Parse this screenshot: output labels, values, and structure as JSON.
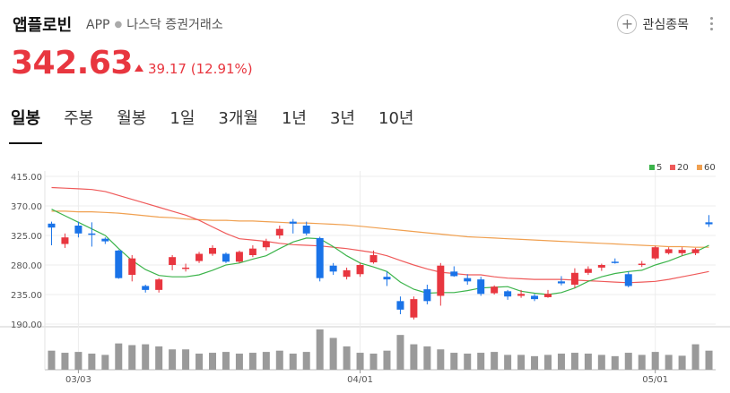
{
  "header": {
    "name": "앱플로빈",
    "ticker": "APP",
    "exchange": "나스닥 증권거래소",
    "watch_label": "관심종목"
  },
  "quote": {
    "price": "342.63",
    "change": "39.17",
    "change_pct": "(12.91%)"
  },
  "tabs": [
    "일봉",
    "주봉",
    "월봉",
    "1일",
    "3개월",
    "1년",
    "3년",
    "10년"
  ],
  "colors": {
    "up": "#e8363f",
    "down": "#1a73e8",
    "ma5": "#3cb44b",
    "ma20": "#ef5a5a",
    "ma60": "#f0a050"
  },
  "chart_data": {
    "type": "candlestick",
    "ylim": [
      190,
      415
    ],
    "yticks": [
      415,
      370,
      325,
      280,
      235,
      190
    ],
    "ytick_labels": [
      "415.00",
      "370.00",
      "325.00",
      "280.00",
      "235.00",
      "190.00"
    ],
    "xtick_labels": [
      "03/03",
      "04/01",
      "05/01"
    ],
    "xtick_index": [
      2,
      23,
      45
    ],
    "legend": [
      "5",
      "20",
      "60"
    ],
    "candles": [
      [
        343,
        337,
        346,
        310
      ],
      [
        312,
        322,
        328,
        306
      ],
      [
        340,
        328,
        346,
        322
      ],
      [
        328,
        326,
        345,
        308
      ],
      [
        320,
        316,
        322,
        312
      ],
      [
        302,
        260,
        303,
        259
      ],
      [
        265,
        290,
        295,
        255
      ],
      [
        248,
        242,
        250,
        238
      ],
      [
        242,
        258,
        260,
        238
      ],
      [
        280,
        292,
        295,
        272
      ],
      [
        275,
        276,
        282,
        270
      ],
      [
        286,
        297,
        300,
        283
      ],
      [
        297,
        306,
        310,
        294
      ],
      [
        297,
        285,
        299,
        283
      ],
      [
        285,
        300,
        302,
        283
      ],
      [
        295,
        305,
        310,
        292
      ],
      [
        307,
        316,
        320,
        302
      ],
      [
        325,
        335,
        340,
        320
      ],
      [
        346,
        343,
        350,
        328
      ],
      [
        340,
        328,
        346,
        325
      ],
      [
        321,
        260,
        323,
        255
      ],
      [
        279,
        270,
        283,
        265
      ],
      [
        262,
        272,
        276,
        258
      ],
      [
        266,
        280,
        283,
        262
      ],
      [
        284,
        295,
        302,
        282
      ],
      [
        262,
        258,
        270,
        248
      ],
      [
        225,
        212,
        232,
        205
      ],
      [
        200,
        228,
        232,
        197
      ],
      [
        243,
        225,
        250,
        220
      ],
      [
        233,
        279,
        283,
        218
      ],
      [
        270,
        263,
        278,
        262
      ],
      [
        260,
        255,
        266,
        250
      ],
      [
        258,
        236,
        262,
        233
      ],
      [
        237,
        247,
        249,
        235
      ],
      [
        240,
        232,
        242,
        227
      ],
      [
        233,
        236,
        242,
        230
      ],
      [
        233,
        228,
        236,
        225
      ],
      [
        231,
        236,
        242,
        230
      ],
      [
        255,
        252,
        263,
        249
      ],
      [
        250,
        268,
        275,
        245
      ],
      [
        268,
        274,
        278,
        265
      ],
      [
        276,
        280,
        282,
        271
      ],
      [
        285,
        283,
        290,
        282
      ],
      [
        266,
        248,
        270,
        246
      ],
      [
        280,
        282,
        286,
        277
      ],
      [
        290,
        307,
        309,
        288
      ],
      [
        298,
        304,
        307,
        296
      ],
      [
        298,
        303,
        307,
        294
      ],
      [
        298,
        304,
        306,
        295
      ],
      [
        345,
        342,
        356,
        338
      ]
    ],
    "volume": [
      45,
      40,
      42,
      38,
      35,
      62,
      58,
      60,
      55,
      48,
      48,
      38,
      40,
      42,
      38,
      40,
      42,
      45,
      38,
      42,
      95,
      75,
      55,
      40,
      38,
      45,
      82,
      60,
      55,
      48,
      40,
      38,
      40,
      42,
      35,
      35,
      32,
      35,
      38,
      40,
      38,
      35,
      32,
      40,
      35,
      42,
      35,
      33,
      60,
      45
    ],
    "ma5": [
      365,
      355,
      345,
      335,
      325,
      305,
      287,
      273,
      264,
      262,
      262,
      265,
      272,
      280,
      283,
      289,
      294,
      305,
      315,
      321,
      320,
      308,
      294,
      283,
      277,
      270,
      254,
      243,
      237,
      238,
      238,
      241,
      245,
      246,
      247,
      240,
      237,
      235,
      238,
      245,
      255,
      262,
      267,
      270,
      272,
      280,
      286,
      294,
      300,
      310
    ],
    "ma20": [
      398,
      397,
      396,
      395,
      392,
      386,
      380,
      374,
      368,
      362,
      356,
      348,
      338,
      328,
      320,
      318,
      316,
      313,
      311,
      310,
      309,
      307,
      305,
      302,
      299,
      294,
      287,
      280,
      274,
      269,
      267,
      265,
      265,
      262,
      260,
      259,
      258,
      258,
      258,
      257,
      256,
      255,
      254,
      253,
      254,
      255,
      258,
      262,
      266,
      270
    ],
    "ma60": [
      362,
      362,
      361,
      361,
      360,
      359,
      357,
      355,
      353,
      352,
      350,
      349,
      348,
      348,
      347,
      347,
      346,
      345,
      344,
      344,
      343,
      342,
      341,
      339,
      337,
      335,
      333,
      331,
      329,
      327,
      325,
      323,
      322,
      321,
      320,
      319,
      318,
      317,
      316,
      315,
      314,
      313,
      312,
      311,
      310,
      309,
      308,
      308,
      307,
      307
    ]
  }
}
